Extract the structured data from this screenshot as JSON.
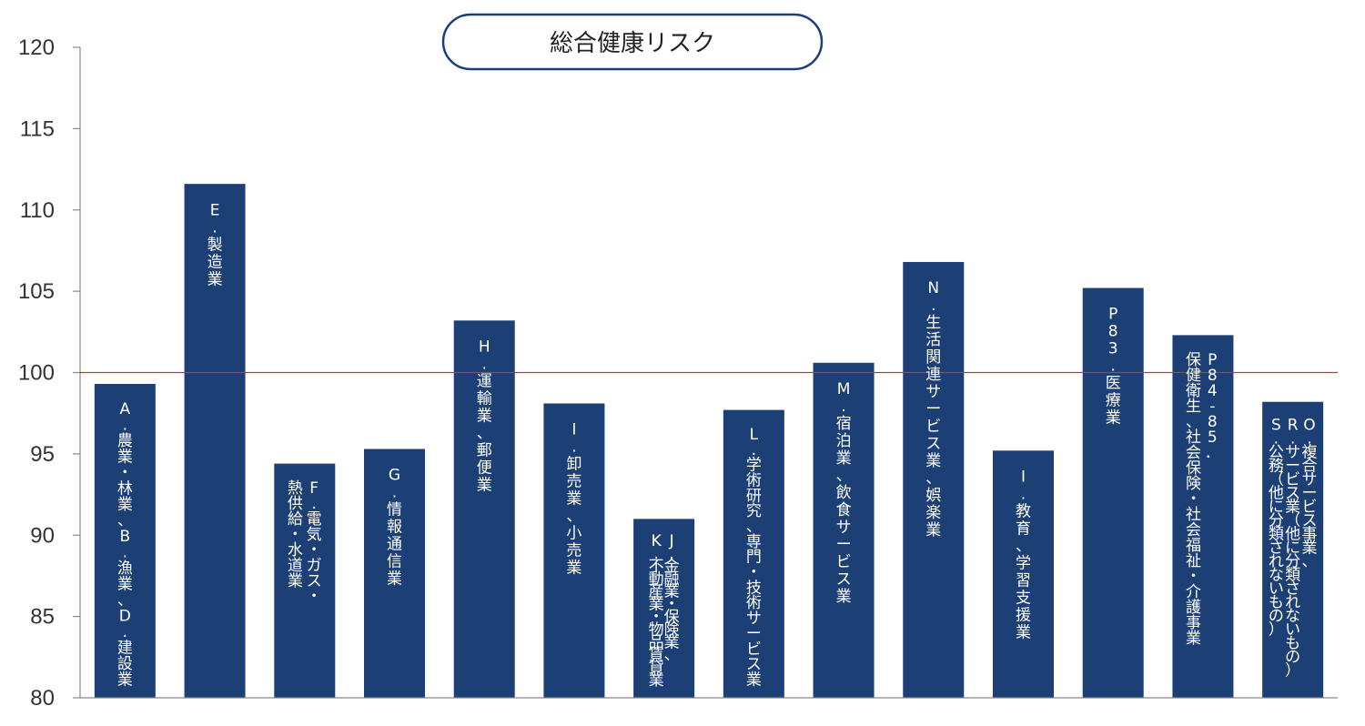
{
  "chart_data": {
    "type": "bar",
    "title": "総合健康リスク",
    "xlabel": "",
    "ylabel": "",
    "ylim": [
      80,
      120
    ],
    "yticks": [
      80,
      85,
      90,
      95,
      100,
      105,
      110,
      115,
      120
    ],
    "reference_line": 100,
    "grid": false,
    "legend": "none",
    "colors": {
      "bar": "#1c3f75",
      "reference_line": "#c0392b",
      "axis": "#888888",
      "title_border": "#1c3f75"
    },
    "categories": [
      "A.農業・林業、B.漁業、D.建設業",
      "E.製造業",
      "F.電気・ガス・熱供給・水道業",
      "G.情報通信業",
      "H.運輸業、郵便業",
      "I.卸売業、小売業",
      "J.金融業・保険業、K.不動産業・物品賃貸業",
      "L.学術研究、専門・技術サービス業",
      "M.宿泊業、飲食サービス業",
      "N.生活関連サービス業、娯楽業",
      "I.教育、学習支援業",
      "P83.医療業",
      "P84-85．保健衛生、社会保険・社会福祉・介護事業",
      "O.複合サービス事業、R.サービス業（他に分類されないもの）S.公務（他に分類されないもの）"
    ],
    "category_lines": [
      [
        "A.農業・林業、B.漁業、D.建設業"
      ],
      [
        "E.製造業"
      ],
      [
        "F.電気・ガス・",
        "熱供給・水道業"
      ],
      [
        "G.情報通信業"
      ],
      [
        "H.運輸業、郵便業"
      ],
      [
        "I.卸売業、小売業"
      ],
      [
        "J.金融業・保険業、",
        "K.不動産業・物品賃貸業"
      ],
      [
        "L.学術研究、専門・技術サービス業"
      ],
      [
        "M.宿泊業、飲食サービス業"
      ],
      [
        "N.生活関連サービス業、娯楽業"
      ],
      [
        "I.教育、学習支援業"
      ],
      [
        "P83.医療業"
      ],
      [
        "P84-85．",
        "保健衛生、社会保険・社会福祉・介護事業"
      ],
      [
        "O.複合サービス事業、",
        "R.サービス業（他に分類されないもの）",
        "S.公務（他に分類されないもの）"
      ]
    ],
    "values": [
      99.3,
      111.6,
      94.4,
      95.3,
      103.2,
      98.1,
      91.0,
      97.7,
      100.6,
      106.8,
      95.2,
      105.2,
      102.3,
      98.2
    ]
  }
}
